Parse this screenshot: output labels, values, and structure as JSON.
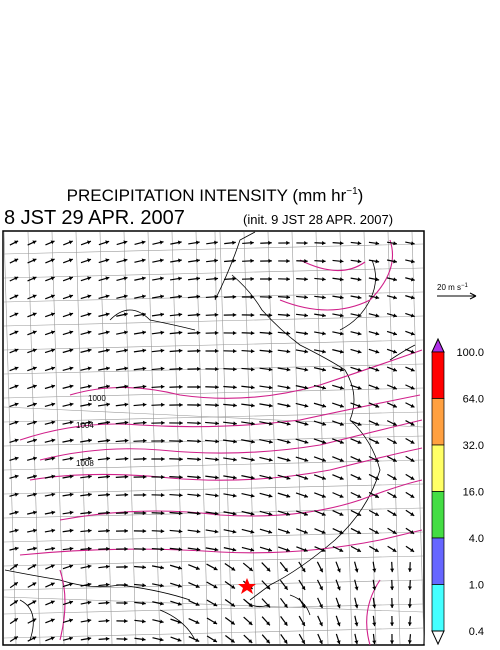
{
  "header": {
    "title": "PRECIPITATION INTENSITY (mm hr",
    "title_sup": "−1",
    "title_end": ")",
    "valid_time": "8 JST 29 APR. 2007",
    "init_time": "(init. 9 JST 28 APR. 2007)"
  },
  "vector_scale": {
    "label": "20 m s",
    "sup": "−1"
  },
  "colorbar": {
    "labels": [
      "100.0",
      "64.0",
      "32.0",
      "16.0",
      "4.0",
      "1.0",
      "0.4"
    ],
    "colors": [
      "#b030e8",
      "#ff0000",
      "#ffa040",
      "#ffff66",
      "#44dd44",
      "#6666ff",
      "#44ffff",
      "#ffffff"
    ]
  },
  "isobar_labels": [
    "1000",
    "1004",
    "1008"
  ]
}
